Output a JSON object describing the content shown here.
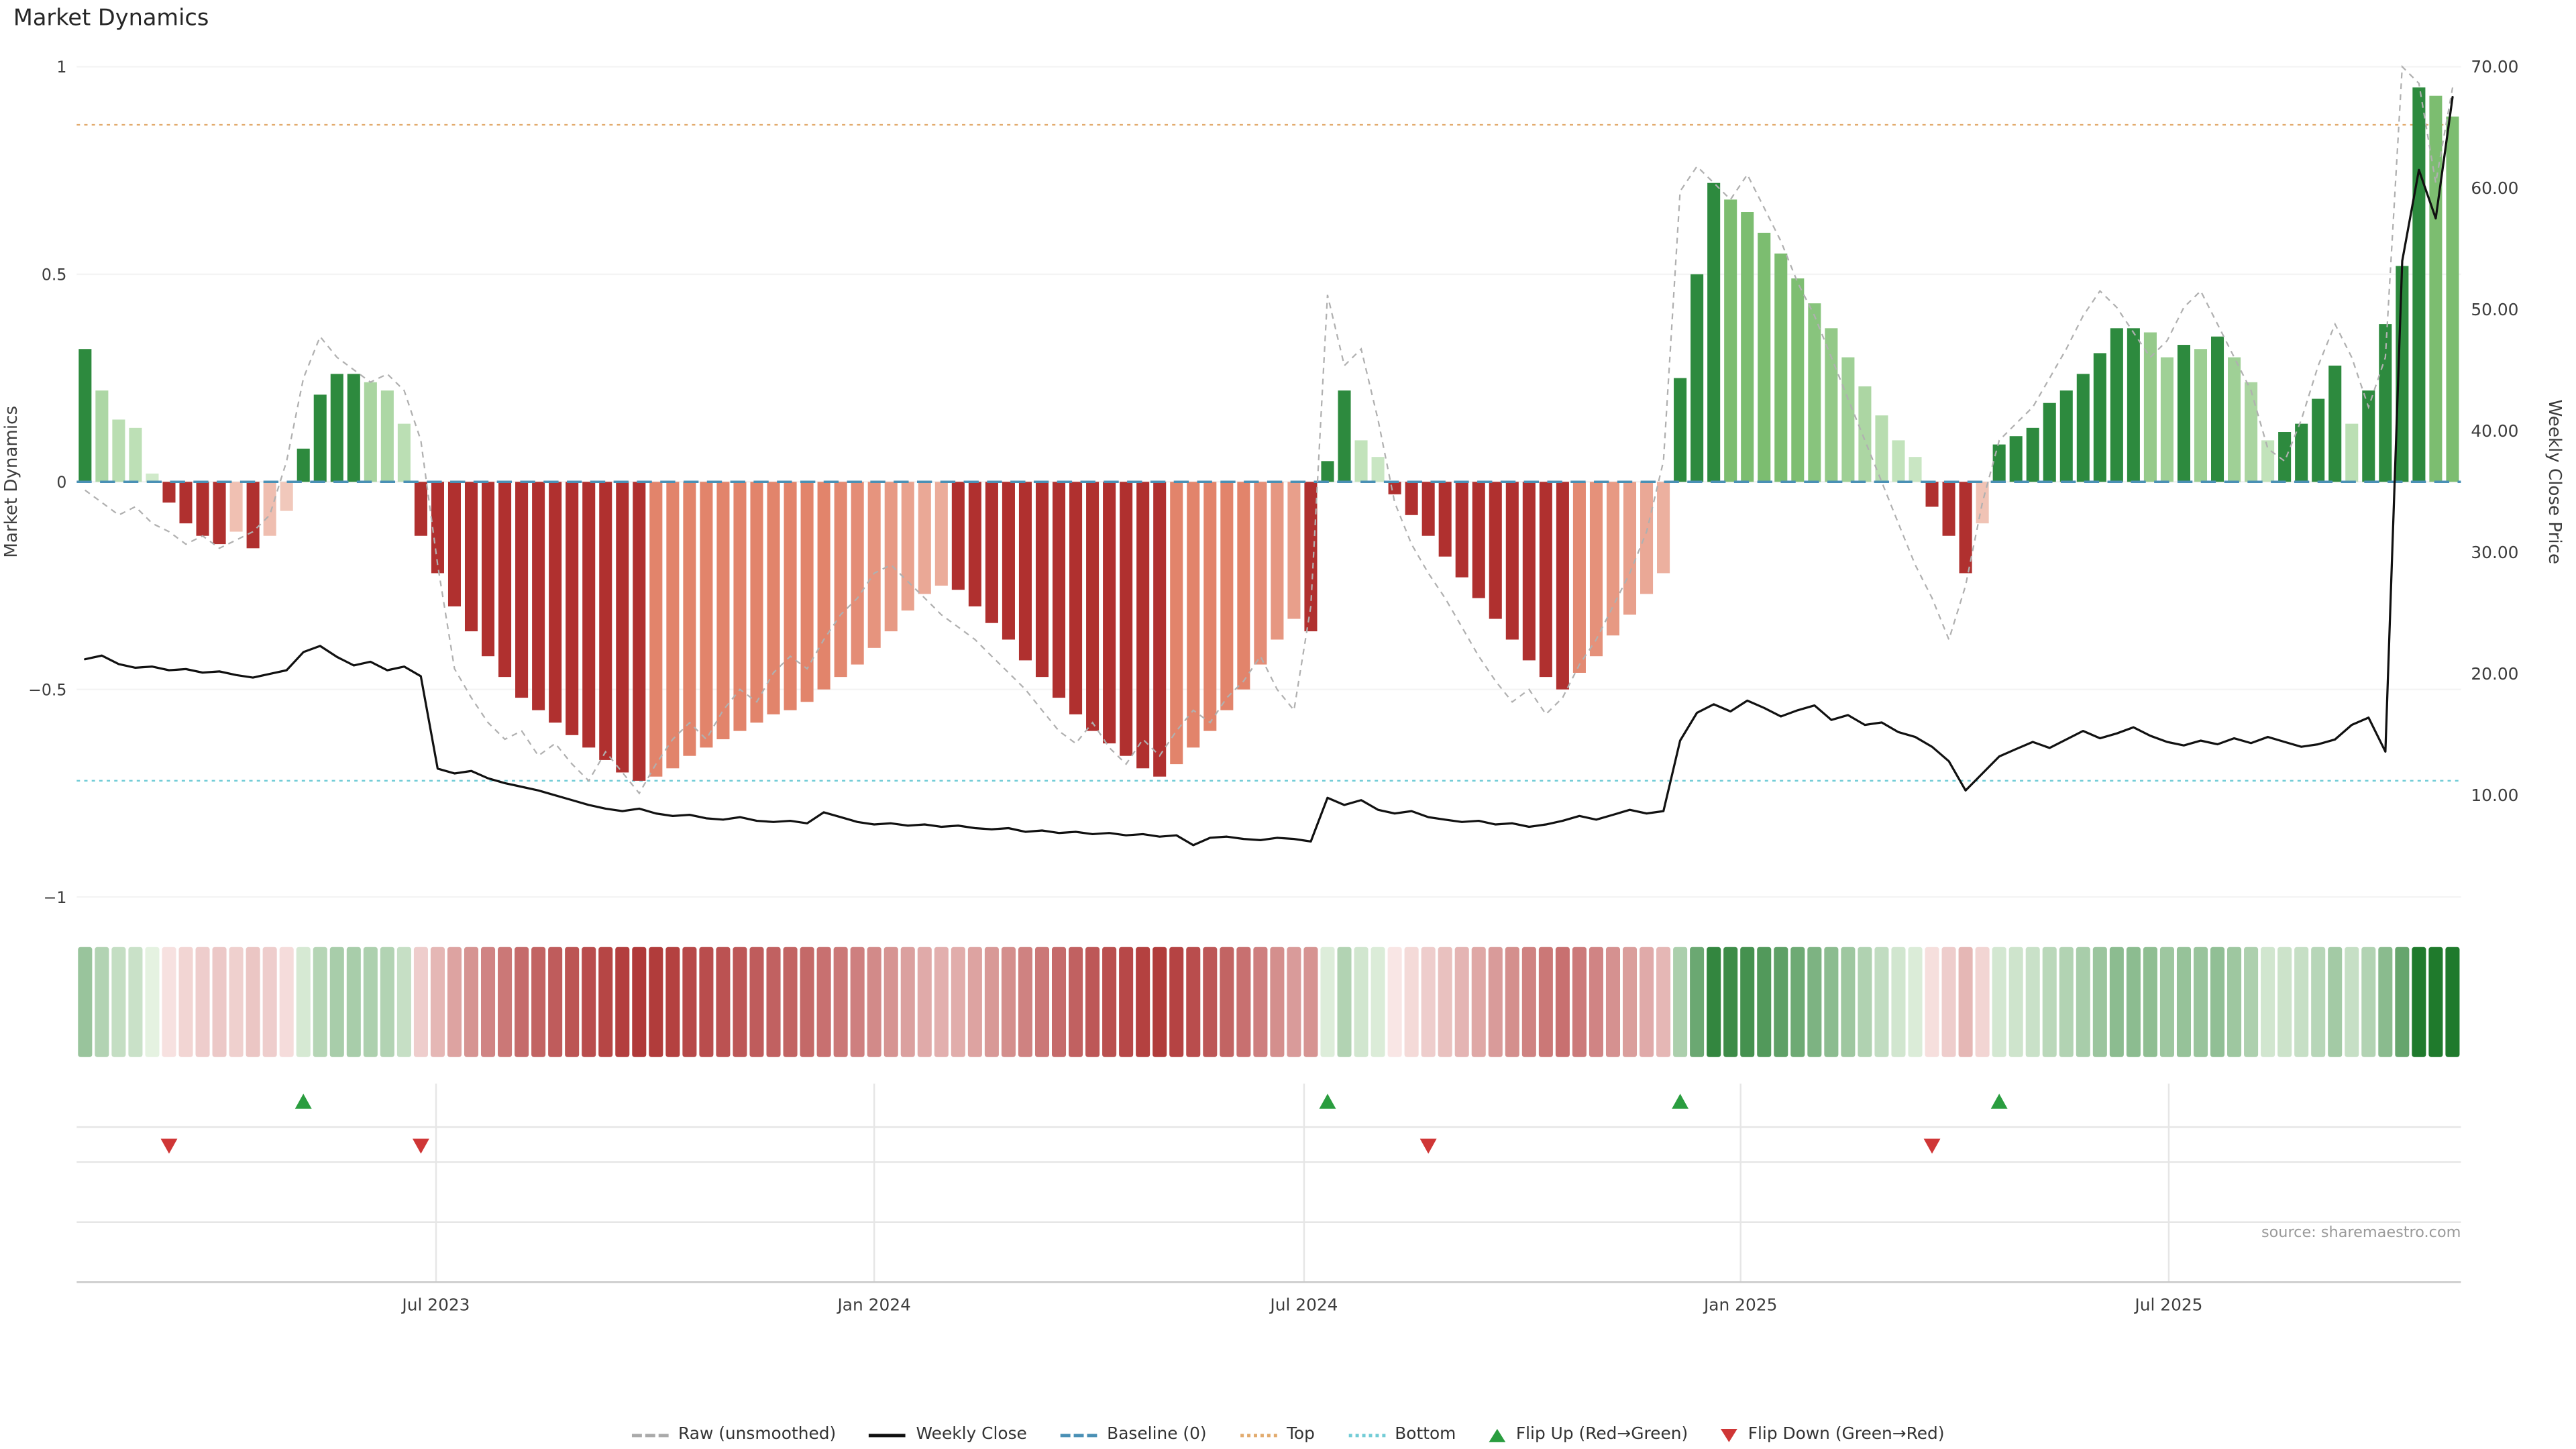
{
  "title": "Market Dynamics",
  "source": "source: sharemaestro.com",
  "axes": {
    "left_label": "Market Dynamics",
    "right_label": "Weekly Close Price",
    "left_ticks": [
      {
        "v": 1,
        "label": "1"
      },
      {
        "v": 0.5,
        "label": "0.5"
      },
      {
        "v": 0,
        "label": "0"
      },
      {
        "v": -0.5,
        "label": "−0.5"
      },
      {
        "v": -1,
        "label": "−1"
      }
    ],
    "right_ticks": [
      {
        "v": 70,
        "label": "70.00"
      },
      {
        "v": 60,
        "label": "60.00"
      },
      {
        "v": 50,
        "label": "50.00"
      },
      {
        "v": 40,
        "label": "40.00"
      },
      {
        "v": 30,
        "label": "30.00"
      },
      {
        "v": 20,
        "label": "20.00"
      },
      {
        "v": 10,
        "label": "10.00"
      }
    ],
    "x_ticks": [
      {
        "i": 20.9,
        "label": "Jul 2023"
      },
      {
        "i": 47.0,
        "label": "Jan 2024"
      },
      {
        "i": 72.6,
        "label": "Jul 2024"
      },
      {
        "i": 98.6,
        "label": "Jan 2025"
      },
      {
        "i": 124.1,
        "label": "Jul 2025"
      }
    ]
  },
  "colors": {
    "bar_pos_dark": "#2d8a3e",
    "bar_pos_light_lo": "#d4ecce",
    "bar_pos_light_hi": "#7cbd70",
    "bar_neg_dark": "#b0302f",
    "bar_neg_light_lo": "#f4d3c8",
    "bar_neg_light_hi": "#e2846b",
    "heat_pos_lo": "#eaf5e6",
    "heat_pos_hi": "#1f7a2c",
    "heat_neg_lo": "#fceeec",
    "heat_neg_hi": "#a82525",
    "raw_line": "#b0b0b0",
    "close_line": "#111111",
    "baseline": "#4a90b5",
    "top_line": "#e2ab6e",
    "bottom_line": "#72ccd6",
    "flip_up": "#2a9d3f",
    "flip_down": "#cf3636",
    "grid": "#f4f4f4",
    "panel_line": "#e6e6e6",
    "axis_line": "#c9c9c9",
    "tick_text": "#3d3d3d"
  },
  "legend": [
    {
      "label": "Raw (unsmoothed)",
      "type": "dash",
      "color": "#aaaaaa"
    },
    {
      "label": "Weekly Close",
      "type": "solid",
      "color": "#111111"
    },
    {
      "label": "Baseline (0)",
      "type": "longdash",
      "color": "#4a90b5"
    },
    {
      "label": "Top",
      "type": "dot",
      "color": "#e2ab6e"
    },
    {
      "label": "Bottom",
      "type": "dot",
      "color": "#72ccd6"
    },
    {
      "label": "Flip Up (Red→Green)",
      "type": "tri-up",
      "color": "#2a9d3f"
    },
    {
      "label": "Flip Down (Green→Red)",
      "type": "tri-down",
      "color": "#cf3636"
    }
  ],
  "chart_data": {
    "type": "bar",
    "subtype": "weekly oscillator bars + raw dashed line (left axis) + weekly close price line (right axis) + heatmap strip + flip markers",
    "title": "Market Dynamics",
    "x_unit": "weeks (Feb 2023 - Oct 2025)",
    "n_weeks": 142,
    "osc_axis_range": [
      -1,
      1
    ],
    "price_axis_range": [
      10,
      70
    ],
    "baseline": 0,
    "top_level": 0.86,
    "bottom_level": -0.72,
    "flip_up_indices": [
      13,
      74,
      95,
      114
    ],
    "flip_down_indices": [
      5,
      20,
      80,
      110
    ],
    "series": {
      "oscillator": [
        0.32,
        0.22,
        0.15,
        0.13,
        0.02,
        -0.05,
        -0.1,
        -0.13,
        -0.15,
        -0.12,
        -0.16,
        -0.13,
        -0.07,
        0.08,
        0.21,
        0.26,
        0.26,
        0.24,
        0.22,
        0.14,
        -0.13,
        -0.22,
        -0.3,
        -0.36,
        -0.42,
        -0.47,
        -0.52,
        -0.55,
        -0.58,
        -0.61,
        -0.64,
        -0.67,
        -0.7,
        -0.72,
        -0.71,
        -0.69,
        -0.66,
        -0.64,
        -0.62,
        -0.6,
        -0.58,
        -0.56,
        -0.55,
        -0.53,
        -0.5,
        -0.47,
        -0.44,
        -0.4,
        -0.36,
        -0.31,
        -0.27,
        -0.25,
        -0.26,
        -0.3,
        -0.34,
        -0.38,
        -0.43,
        -0.47,
        -0.52,
        -0.56,
        -0.6,
        -0.63,
        -0.66,
        -0.69,
        -0.71,
        -0.68,
        -0.64,
        -0.6,
        -0.55,
        -0.5,
        -0.44,
        -0.38,
        -0.33,
        -0.36,
        0.05,
        0.22,
        0.1,
        0.06,
        -0.03,
        -0.08,
        -0.13,
        -0.18,
        -0.23,
        -0.28,
        -0.33,
        -0.38,
        -0.43,
        -0.47,
        -0.5,
        -0.46,
        -0.42,
        -0.37,
        -0.32,
        -0.27,
        -0.22,
        0.25,
        0.5,
        0.72,
        0.68,
        0.65,
        0.6,
        0.55,
        0.49,
        0.43,
        0.37,
        0.3,
        0.23,
        0.16,
        0.1,
        0.06,
        -0.06,
        -0.13,
        -0.22,
        -0.1,
        0.09,
        0.11,
        0.13,
        0.19,
        0.22,
        0.26,
        0.31,
        0.37,
        0.37,
        0.36,
        0.3,
        0.33,
        0.32,
        0.35,
        0.3,
        0.24,
        0.1,
        0.12,
        0.14,
        0.2,
        0.28,
        0.14,
        0.22,
        0.38,
        0.52,
        0.95,
        0.93,
        0.88
      ],
      "raw": [
        -0.02,
        -0.05,
        -0.08,
        -0.06,
        -0.1,
        -0.12,
        -0.15,
        -0.13,
        -0.16,
        -0.14,
        -0.12,
        -0.08,
        0.05,
        0.25,
        0.35,
        0.3,
        0.27,
        0.24,
        0.26,
        0.22,
        0.1,
        -0.2,
        -0.45,
        -0.52,
        -0.58,
        -0.62,
        -0.6,
        -0.66,
        -0.63,
        -0.68,
        -0.72,
        -0.65,
        -0.7,
        -0.75,
        -0.68,
        -0.62,
        -0.58,
        -0.62,
        -0.55,
        -0.5,
        -0.53,
        -0.46,
        -0.42,
        -0.45,
        -0.38,
        -0.32,
        -0.28,
        -0.22,
        -0.2,
        -0.24,
        -0.28,
        -0.32,
        -0.35,
        -0.38,
        -0.42,
        -0.46,
        -0.5,
        -0.55,
        -0.6,
        -0.63,
        -0.58,
        -0.64,
        -0.68,
        -0.62,
        -0.66,
        -0.6,
        -0.55,
        -0.58,
        -0.52,
        -0.48,
        -0.42,
        -0.5,
        -0.55,
        -0.3,
        0.45,
        0.28,
        0.32,
        0.15,
        -0.05,
        -0.15,
        -0.22,
        -0.28,
        -0.35,
        -0.42,
        -0.48,
        -0.53,
        -0.5,
        -0.56,
        -0.52,
        -0.44,
        -0.38,
        -0.3,
        -0.22,
        -0.12,
        0.05,
        0.7,
        0.76,
        0.72,
        0.68,
        0.74,
        0.66,
        0.58,
        0.48,
        0.4,
        0.3,
        0.2,
        0.1,
        0.0,
        -0.1,
        -0.2,
        -0.28,
        -0.38,
        -0.25,
        -0.05,
        0.1,
        0.14,
        0.18,
        0.25,
        0.32,
        0.4,
        0.46,
        0.42,
        0.36,
        0.3,
        0.34,
        0.42,
        0.46,
        0.38,
        0.3,
        0.22,
        0.08,
        0.05,
        0.15,
        0.28,
        0.38,
        0.3,
        0.18,
        0.3,
        1.0,
        0.96,
        0.72,
        0.95
      ],
      "weekly_close": [
        21.2,
        21.5,
        20.8,
        20.5,
        20.6,
        20.3,
        20.4,
        20.1,
        20.2,
        19.9,
        19.7,
        20.0,
        20.3,
        21.8,
        22.3,
        21.4,
        20.7,
        21.0,
        20.3,
        20.6,
        19.8,
        12.2,
        11.8,
        12.0,
        11.4,
        11.0,
        10.7,
        10.4,
        10.0,
        9.6,
        9.2,
        8.9,
        8.7,
        8.9,
        8.5,
        8.3,
        8.4,
        8.1,
        8.0,
        8.2,
        7.9,
        7.8,
        7.9,
        7.7,
        8.6,
        8.2,
        7.8,
        7.6,
        7.7,
        7.5,
        7.6,
        7.4,
        7.5,
        7.3,
        7.2,
        7.3,
        7.0,
        7.1,
        6.9,
        7.0,
        6.8,
        6.9,
        6.7,
        6.8,
        6.6,
        6.7,
        5.9,
        6.5,
        6.6,
        6.4,
        6.3,
        6.5,
        6.4,
        6.2,
        9.8,
        9.2,
        9.6,
        8.8,
        8.5,
        8.7,
        8.2,
        8.0,
        7.8,
        7.9,
        7.6,
        7.7,
        7.4,
        7.6,
        7.9,
        8.3,
        8.0,
        8.4,
        8.8,
        8.5,
        8.7,
        14.5,
        16.8,
        17.5,
        16.9,
        17.8,
        17.2,
        16.5,
        17.0,
        17.4,
        16.2,
        16.6,
        15.8,
        16.0,
        15.2,
        14.8,
        14.0,
        12.8,
        10.4,
        11.8,
        13.2,
        13.8,
        14.4,
        13.9,
        14.6,
        15.3,
        14.7,
        15.1,
        15.6,
        14.9,
        14.4,
        14.1,
        14.5,
        14.2,
        14.7,
        14.3,
        14.8,
        14.4,
        14.0,
        14.2,
        14.6,
        15.8,
        16.4,
        13.6,
        54.0,
        61.5,
        57.5,
        67.5
      ]
    }
  }
}
